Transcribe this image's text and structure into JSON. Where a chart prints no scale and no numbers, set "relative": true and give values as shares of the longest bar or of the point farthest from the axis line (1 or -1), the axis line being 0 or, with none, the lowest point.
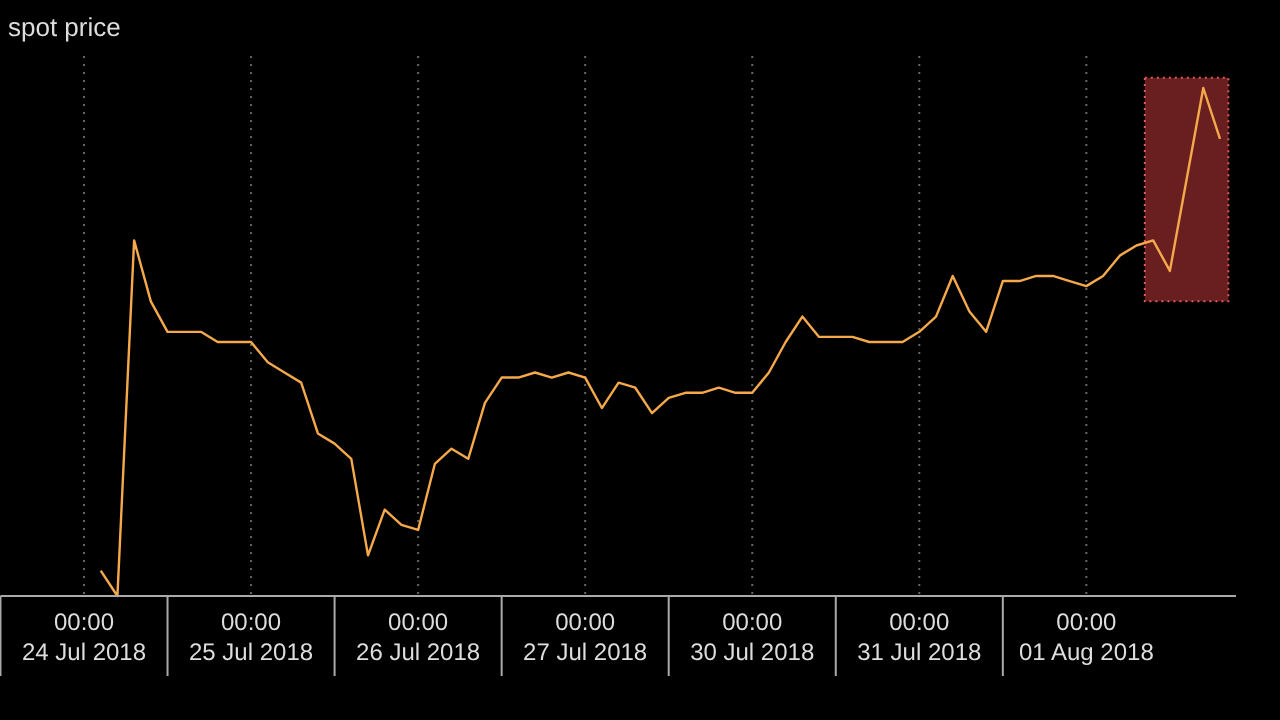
{
  "chart_data": {
    "type": "line",
    "title": "spot price",
    "relative": true,
    "grid": "x",
    "categories": [
      "00:00\n24 Jul 2018",
      null,
      null,
      null,
      null,
      null,
      null,
      null,
      null,
      null,
      "00:00\n25 Jul 2018",
      null,
      null,
      null,
      null,
      null,
      null,
      null,
      null,
      null,
      "00:00\n26 Jul 2018",
      null,
      null,
      null,
      null,
      null,
      null,
      null,
      null,
      null,
      "00:00\n27 Jul 2018",
      null,
      null,
      null,
      null,
      null,
      null,
      null,
      null,
      null,
      "00:00\n30 Jul 2018",
      null,
      null,
      null,
      null,
      null,
      null,
      null,
      null,
      null,
      "00:00\n31 Jul 2018",
      null,
      null,
      null,
      null,
      null,
      null,
      null,
      null,
      null,
      "00:00\n01 Aug 2018",
      null,
      null,
      null,
      null,
      null,
      null,
      null,
      null
    ],
    "series": [
      {
        "color": "#f5a94a",
        "values": [
          null,
          0.05,
          0.0,
          0.7,
          0.58,
          0.52,
          0.52,
          0.52,
          0.5,
          0.5,
          0.5,
          0.46,
          0.44,
          0.42,
          0.32,
          0.3,
          0.27,
          0.08,
          0.17,
          0.14,
          0.13,
          0.26,
          0.29,
          0.27,
          0.38,
          0.43,
          0.43,
          0.44,
          0.43,
          0.44,
          0.43,
          0.37,
          0.42,
          0.41,
          0.36,
          0.39,
          0.4,
          0.4,
          0.41,
          0.4,
          0.4,
          0.44,
          0.5,
          0.55,
          0.51,
          0.51,
          0.51,
          0.5,
          0.5,
          0.5,
          0.52,
          0.55,
          0.63,
          0.56,
          0.52,
          0.62,
          0.62,
          0.63,
          0.63,
          0.62,
          0.61,
          0.63,
          0.67,
          0.69,
          0.7,
          0.64,
          0.82,
          1.0,
          0.9
        ]
      }
    ]
  }
}
